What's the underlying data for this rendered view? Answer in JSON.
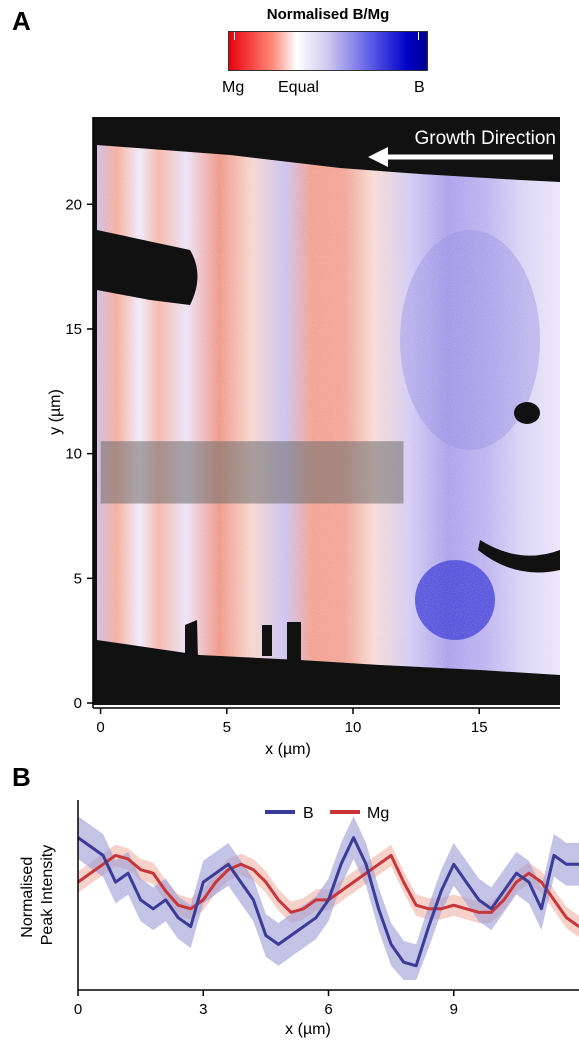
{
  "panel_a": {
    "letter": "A",
    "colorbar": {
      "title": "Normalised B/Mg",
      "labels": [
        "Mg",
        "Equal",
        "B"
      ],
      "colors": {
        "low": "#e8000b",
        "mid": "#ffffff",
        "high": "#0000b4"
      }
    },
    "annotation": "Growth Direction",
    "annotation_arrow": "left-arrow-icon",
    "colors": {
      "background": "#111111",
      "mask": "#111111",
      "highlight_band": "#8a8a8a"
    }
  },
  "panel_b": {
    "letter": "B",
    "colors": {
      "B": "#3b3b98",
      "Mg": "#c8363a",
      "B_band": "#9b9bd6",
      "Mg_band": "#efb3a6"
    }
  },
  "chart_data": [
    {
      "type": "heatmap",
      "title": "Normalised B/Mg",
      "xlabel": "x (µm)",
      "ylabel": "y (µm)",
      "xlim": [
        -0.3,
        18.2
      ],
      "ylim": [
        -0.2,
        23.5
      ],
      "xticks": [
        0,
        5,
        10,
        15
      ],
      "yticks": [
        0,
        5,
        10,
        15,
        20
      ],
      "colorbar_labels": [
        "Mg",
        "Equal",
        "B"
      ],
      "highlight_band": {
        "x": [
          0,
          12
        ],
        "y": [
          8,
          10.5
        ]
      }
    },
    {
      "type": "line",
      "xlabel": "x (µm)",
      "ylabel": "Normalised\nPeak Intensity",
      "xlim": [
        0,
        12
      ],
      "xticks": [
        0,
        3,
        6,
        9
      ],
      "legend": "top-center",
      "series": [
        {
          "name": "B",
          "x": [
            0,
            0.3,
            0.6,
            0.9,
            1.2,
            1.5,
            1.8,
            2.1,
            2.4,
            2.7,
            3.0,
            3.3,
            3.6,
            3.9,
            4.2,
            4.5,
            4.8,
            5.1,
            5.4,
            5.7,
            6.0,
            6.3,
            6.6,
            6.9,
            7.2,
            7.5,
            7.8,
            8.1,
            8.4,
            8.7,
            9.0,
            9.3,
            9.6,
            9.9,
            10.2,
            10.5,
            10.8,
            11.1,
            11.4,
            11.7,
            12.0
          ],
          "values": [
            0.8,
            0.75,
            0.7,
            0.55,
            0.6,
            0.45,
            0.4,
            0.45,
            0.35,
            0.3,
            0.55,
            0.6,
            0.65,
            0.55,
            0.45,
            0.25,
            0.2,
            0.25,
            0.3,
            0.35,
            0.45,
            0.65,
            0.8,
            0.65,
            0.4,
            0.2,
            0.1,
            0.08,
            0.3,
            0.5,
            0.65,
            0.55,
            0.45,
            0.4,
            0.5,
            0.6,
            0.55,
            0.4,
            0.7,
            0.65,
            0.65
          ],
          "band": 0.12
        },
        {
          "name": "Mg",
          "x": [
            0,
            0.3,
            0.6,
            0.9,
            1.2,
            1.5,
            1.8,
            2.1,
            2.4,
            2.7,
            3.0,
            3.3,
            3.6,
            3.9,
            4.2,
            4.5,
            4.8,
            5.1,
            5.4,
            5.7,
            6.0,
            6.3,
            6.6,
            6.9,
            7.2,
            7.5,
            7.8,
            8.1,
            8.4,
            8.7,
            9.0,
            9.3,
            9.6,
            9.9,
            10.2,
            10.5,
            10.8,
            11.1,
            11.4,
            11.7,
            12.0
          ],
          "values": [
            0.55,
            0.6,
            0.65,
            0.7,
            0.68,
            0.62,
            0.6,
            0.5,
            0.42,
            0.4,
            0.45,
            0.55,
            0.62,
            0.65,
            0.62,
            0.55,
            0.45,
            0.38,
            0.4,
            0.45,
            0.45,
            0.5,
            0.55,
            0.6,
            0.65,
            0.7,
            0.55,
            0.42,
            0.4,
            0.4,
            0.42,
            0.4,
            0.38,
            0.38,
            0.45,
            0.55,
            0.6,
            0.55,
            0.45,
            0.35,
            0.3
          ],
          "band": 0.06
        }
      ]
    }
  ]
}
